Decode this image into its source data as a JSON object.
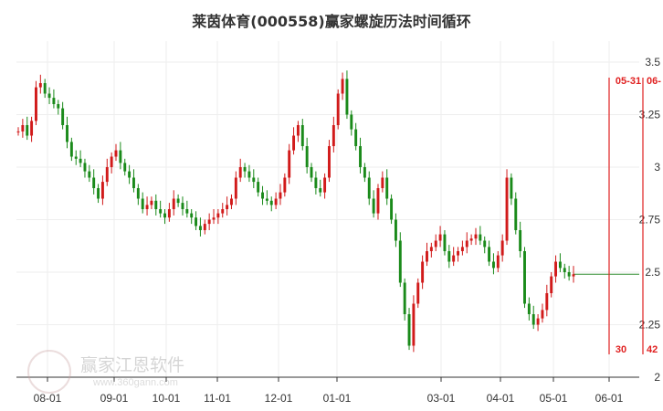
{
  "title": "莱茵体育(000558)赢家螺旋历法时间循环",
  "watermark": {
    "name": "赢家江恩软件",
    "url": "www.360gann.com"
  },
  "colors": {
    "up": "#d11a1a",
    "down": "#1a8a1a",
    "cycle": "#e02020",
    "grid": "#eeeeee",
    "axis": "#333333",
    "ref": "#2e8b2e"
  },
  "chart_data": {
    "type": "candlestick",
    "title": "莱茵体育(000558)赢家螺旋历法时间循环",
    "x_tick_labels": [
      "08-01",
      "09-01",
      "10-01",
      "11-01",
      "12-01",
      "01-01",
      "03-01",
      "04-01",
      "05-01",
      "06-01"
    ],
    "y_tick_labels": [
      "3.5",
      "3.25",
      "3",
      "2.75",
      "2.5",
      "2.25",
      "2"
    ],
    "y_ticks": [
      3.5,
      3.25,
      3,
      2.75,
      2.5,
      2.25,
      2
    ],
    "ylim": [
      2.0,
      3.6
    ],
    "grid": true,
    "reference_line": {
      "value": 2.49
    },
    "cycle_markers": [
      {
        "date": "05-31",
        "label_top": "05-31",
        "label_bottom": "30"
      },
      {
        "date": "06-",
        "label_top": "06-",
        "label_bottom": "42"
      }
    ],
    "closes": [
      3.17,
      3.2,
      3.15,
      3.22,
      3.38,
      3.4,
      3.35,
      3.33,
      3.3,
      3.28,
      3.2,
      3.12,
      3.05,
      3.04,
      3.02,
      2.98,
      2.95,
      2.9,
      2.85,
      2.93,
      3.0,
      3.05,
      3.08,
      3.02,
      2.98,
      2.95,
      2.9,
      2.85,
      2.8,
      2.82,
      2.84,
      2.8,
      2.78,
      2.76,
      2.8,
      2.85,
      2.83,
      2.8,
      2.78,
      2.76,
      2.72,
      2.7,
      2.73,
      2.75,
      2.76,
      2.78,
      2.8,
      2.82,
      2.85,
      2.95,
      3.0,
      2.98,
      2.95,
      2.93,
      2.88,
      2.85,
      2.84,
      2.82,
      2.85,
      2.88,
      2.95,
      3.08,
      3.15,
      3.2,
      3.1,
      3.0,
      2.95,
      2.9,
      2.88,
      2.95,
      3.1,
      3.2,
      3.35,
      3.42,
      3.25,
      3.18,
      3.1,
      3.0,
      2.95,
      2.85,
      2.78,
      2.9,
      2.95,
      2.85,
      2.75,
      2.65,
      2.45,
      2.3,
      2.15,
      2.35,
      2.45,
      2.55,
      2.6,
      2.62,
      2.65,
      2.68,
      2.6,
      2.55,
      2.58,
      2.6,
      2.62,
      2.65,
      2.66,
      2.68,
      2.65,
      2.62,
      2.55,
      2.52,
      2.58,
      2.65,
      2.95,
      2.85,
      2.7,
      2.6,
      2.35,
      2.3,
      2.25,
      2.28,
      2.32,
      2.4,
      2.48,
      2.55,
      2.52,
      2.5,
      2.48,
      2.49
    ]
  }
}
